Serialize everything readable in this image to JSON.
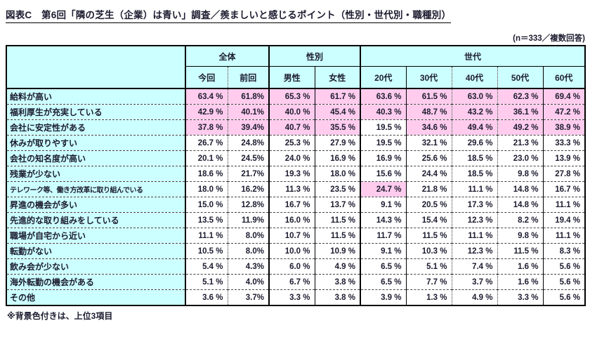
{
  "chart_data": {
    "type": "table",
    "title": "図表C　第6回「隣の芝生（企業）は青い」調査／羨ましいと感じるポイント（性別・世代別・職種別）",
    "n_note": "(n＝333／複数回答)",
    "footnote": "※背景色付きは、上位3項目",
    "highlight_rule": "背景色付きは各列の上位3項目",
    "column_groups": [
      {
        "label": "全体",
        "span": 2
      },
      {
        "label": "性別",
        "span": 2
      },
      {
        "label": "世代",
        "span": 5
      }
    ],
    "sub_columns": [
      "今回",
      "前回",
      "男性",
      "女性",
      "20代",
      "30代",
      "40代",
      "50代",
      "60代"
    ],
    "rows": [
      {
        "label": "給料が高い",
        "values": [
          "63.4 %",
          "61.8%",
          "65.3 %",
          "61.7 %",
          "63.6 %",
          "61.5 %",
          "63.0 %",
          "62.3 %",
          "69.4 %"
        ],
        "highlighted": [
          true,
          true,
          true,
          true,
          true,
          true,
          true,
          true,
          true
        ]
      },
      {
        "label": "福利厚生が充実している",
        "values": [
          "42.9 %",
          "40.1%",
          "40.0 %",
          "45.4 %",
          "40.3 %",
          "48.7 %",
          "43.2 %",
          "36.1 %",
          "47.2 %"
        ],
        "highlighted": [
          true,
          true,
          true,
          true,
          true,
          true,
          true,
          true,
          true
        ]
      },
      {
        "label": "会社に安定性がある",
        "values": [
          "37.8 %",
          "39.4%",
          "40.7 %",
          "35.5 %",
          "19.5 %",
          "34.6 %",
          "49.4 %",
          "49.2 %",
          "38.9 %"
        ],
        "highlighted": [
          true,
          true,
          true,
          true,
          false,
          true,
          true,
          true,
          true
        ]
      },
      {
        "label": "休みが取りやすい",
        "values": [
          "26.7 %",
          "24.8%",
          "25.3 %",
          "27.9 %",
          "19.5 %",
          "32.1 %",
          "29.6 %",
          "21.3 %",
          "33.3 %"
        ],
        "highlighted": [
          false,
          false,
          false,
          false,
          false,
          false,
          false,
          false,
          false
        ]
      },
      {
        "label": "会社の知名度が高い",
        "values": [
          "20.1 %",
          "24.5%",
          "24.0 %",
          "16.9 %",
          "16.9 %",
          "25.6 %",
          "18.5 %",
          "23.0 %",
          "13.9 %"
        ],
        "highlighted": [
          false,
          false,
          false,
          false,
          false,
          false,
          false,
          false,
          false
        ]
      },
      {
        "label": "残業が少ない",
        "values": [
          "18.6 %",
          "21.7%",
          "19.3 %",
          "18.0 %",
          "15.6 %",
          "24.4 %",
          "18.5 %",
          "9.8 %",
          "27.8 %"
        ],
        "highlighted": [
          false,
          false,
          false,
          false,
          false,
          false,
          false,
          false,
          false
        ]
      },
      {
        "label": "テレワーク等、働き方改革に取り組んでいる",
        "values": [
          "18.0 %",
          "16.2%",
          "11.3 %",
          "23.5 %",
          "24.7 %",
          "21.8 %",
          "11.1 %",
          "14.8 %",
          "16.7 %"
        ],
        "highlighted": [
          false,
          false,
          false,
          false,
          true,
          false,
          false,
          false,
          false
        ]
      },
      {
        "label": "昇進の機会が多い",
        "values": [
          "15.0 %",
          "12.8%",
          "16.7 %",
          "13.7 %",
          "9.1 %",
          "20.5 %",
          "17.3 %",
          "14.8 %",
          "11.1 %"
        ],
        "highlighted": [
          false,
          false,
          false,
          false,
          false,
          false,
          false,
          false,
          false
        ]
      },
      {
        "label": "先進的な取り組みをしている",
        "values": [
          "13.5 %",
          "11.9%",
          "16.0 %",
          "11.5 %",
          "14.3 %",
          "15.4 %",
          "12.3 %",
          "8.2 %",
          "19.4 %"
        ],
        "highlighted": [
          false,
          false,
          false,
          false,
          false,
          false,
          false,
          false,
          false
        ]
      },
      {
        "label": "職場が自宅から近い",
        "values": [
          "11.1 %",
          "8.0%",
          "10.7 %",
          "11.5 %",
          "11.7 %",
          "11.5 %",
          "11.1 %",
          "9.8 %",
          "11.1 %"
        ],
        "highlighted": [
          false,
          false,
          false,
          false,
          false,
          false,
          false,
          false,
          false
        ]
      },
      {
        "label": "転勤がない",
        "values": [
          "10.5 %",
          "8.0%",
          "10.0 %",
          "10.9 %",
          "9.1 %",
          "10.3 %",
          "12.3 %",
          "11.5 %",
          "8.3 %"
        ],
        "highlighted": [
          false,
          false,
          false,
          false,
          false,
          false,
          false,
          false,
          false
        ]
      },
      {
        "label": "飲み会が少ない",
        "values": [
          "5.4 %",
          "4.3%",
          "6.0 %",
          "4.9 %",
          "6.5 %",
          "5.1 %",
          "7.4 %",
          "1.6 %",
          "5.6 %"
        ],
        "highlighted": [
          false,
          false,
          false,
          false,
          false,
          false,
          false,
          false,
          false
        ]
      },
      {
        "label": "海外転勤の機会がある",
        "values": [
          "5.1 %",
          "4.0%",
          "6.7 %",
          "3.8 %",
          "6.5 %",
          "7.7 %",
          "3.7 %",
          "1.6 %",
          "5.6 %"
        ],
        "highlighted": [
          false,
          false,
          false,
          false,
          false,
          false,
          false,
          false,
          false
        ]
      },
      {
        "label": "その他",
        "values": [
          "3.6 %",
          "3.7%",
          "3.3 %",
          "3.8 %",
          "3.9 %",
          "1.3 %",
          "4.9 %",
          "3.3 %",
          "5.6 %"
        ],
        "highlighted": [
          false,
          false,
          false,
          false,
          false,
          false,
          false,
          false,
          false
        ]
      }
    ],
    "colors": {
      "header_bg": "#ccffff",
      "label_bg": "#ccffff",
      "highlight_bg": "#ffccee",
      "border": "#000000",
      "text": "#1c1c30"
    }
  }
}
